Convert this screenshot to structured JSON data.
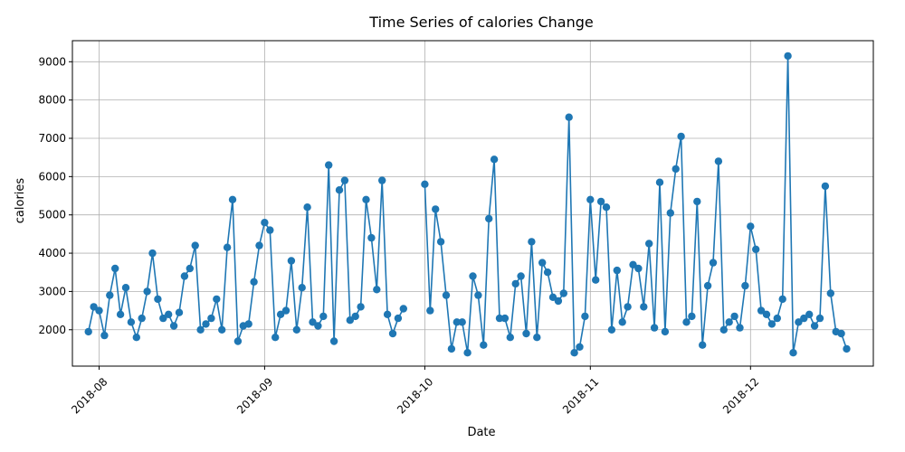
{
  "chart_data": {
    "type": "line",
    "title": "Time Series of calories Change",
    "xlabel": "Date",
    "ylabel": "calories",
    "grid": true,
    "legend": "none",
    "marker": "circle",
    "color": "#1f77b4",
    "xlim": [
      "2018-07-27",
      "2018-12-24"
    ],
    "ylim": [
      1050,
      9550
    ],
    "x_ticks": [
      {
        "date": "2018-08-01",
        "label": "2018-08"
      },
      {
        "date": "2018-09-01",
        "label": "2018-09"
      },
      {
        "date": "2018-10-01",
        "label": "2018-10"
      },
      {
        "date": "2018-11-01",
        "label": "2018-11"
      },
      {
        "date": "2018-12-01",
        "label": "2018-12"
      }
    ],
    "y_ticks": [
      2000,
      3000,
      4000,
      5000,
      6000,
      7000,
      8000,
      9000
    ],
    "series": [
      {
        "segments": [
          {
            "x": [
              "2018-07-30",
              "2018-07-31",
              "2018-08-01",
              "2018-08-02",
              "2018-08-03",
              "2018-08-04",
              "2018-08-05",
              "2018-08-06",
              "2018-08-07",
              "2018-08-08",
              "2018-08-09",
              "2018-08-10",
              "2018-08-11",
              "2018-08-12",
              "2018-08-13",
              "2018-08-14",
              "2018-08-15",
              "2018-08-16",
              "2018-08-17",
              "2018-08-18",
              "2018-08-19",
              "2018-08-20",
              "2018-08-21",
              "2018-08-22",
              "2018-08-23",
              "2018-08-24",
              "2018-08-25",
              "2018-08-26",
              "2018-08-27",
              "2018-08-28",
              "2018-08-29",
              "2018-08-30",
              "2018-08-31",
              "2018-09-01",
              "2018-09-02",
              "2018-09-03",
              "2018-09-04",
              "2018-09-05",
              "2018-09-06",
              "2018-09-07",
              "2018-09-08",
              "2018-09-09",
              "2018-09-10",
              "2018-09-11",
              "2018-09-12",
              "2018-09-13",
              "2018-09-14",
              "2018-09-15",
              "2018-09-16",
              "2018-09-17",
              "2018-09-18",
              "2018-09-19",
              "2018-09-20",
              "2018-09-21",
              "2018-09-22",
              "2018-09-23",
              "2018-09-24",
              "2018-09-25",
              "2018-09-26",
              "2018-09-27",
              "2018-09-28"
            ],
            "y": [
              1950,
              2600,
              2500,
              1850,
              2900,
              3600,
              2400,
              3100,
              2200,
              1800,
              2300,
              3000,
              4000,
              2800,
              2300,
              2400,
              2100,
              2450,
              3400,
              3600,
              4200,
              2000,
              2150,
              2300,
              2800,
              2000,
              4150,
              5400,
              1700,
              2100,
              2150,
              3250,
              4200,
              4800,
              4600,
              1800,
              2400,
              2500,
              3800,
              2000,
              3100,
              5200,
              2200,
              2100,
              2350,
              6300,
              1700,
              5650,
              5900,
              2250,
              2350,
              2600,
              5400,
              4400,
              3050,
              5900,
              2400,
              1900,
              2300,
              2550,
              null
            ]
          },
          {
            "x": [
              "2018-10-01",
              "2018-10-02",
              "2018-10-03",
              "2018-10-04",
              "2018-10-05",
              "2018-10-06",
              "2018-10-07",
              "2018-10-08",
              "2018-10-09",
              "2018-10-10",
              "2018-10-11",
              "2018-10-12",
              "2018-10-13",
              "2018-10-14",
              "2018-10-15",
              "2018-10-16",
              "2018-10-17",
              "2018-10-18",
              "2018-10-19",
              "2018-10-20",
              "2018-10-21",
              "2018-10-22",
              "2018-10-23",
              "2018-10-24",
              "2018-10-25",
              "2018-10-26",
              "2018-10-27",
              "2018-10-28",
              "2018-10-29",
              "2018-10-30",
              "2018-10-31",
              "2018-11-01",
              "2018-11-02",
              "2018-11-03",
              "2018-11-04",
              "2018-11-05",
              "2018-11-06",
              "2018-11-07",
              "2018-11-08",
              "2018-11-09",
              "2018-11-10",
              "2018-11-11",
              "2018-11-12",
              "2018-11-13",
              "2018-11-14",
              "2018-11-15",
              "2018-11-16",
              "2018-11-17",
              "2018-11-18",
              "2018-11-19",
              "2018-11-20",
              "2018-11-21",
              "2018-11-22",
              "2018-11-23",
              "2018-11-24",
              "2018-11-25",
              "2018-11-26",
              "2018-11-27",
              "2018-11-28",
              "2018-11-29",
              "2018-11-30",
              "2018-12-01",
              "2018-12-02",
              "2018-12-03",
              "2018-12-04",
              "2018-12-05",
              "2018-12-06",
              "2018-12-07",
              "2018-12-08",
              "2018-12-09",
              "2018-12-10",
              "2018-12-11",
              "2018-12-12",
              "2018-12-13",
              "2018-12-14",
              "2018-12-15",
              "2018-12-16",
              "2018-12-17",
              "2018-12-18",
              "2018-12-19",
              "2018-12-20"
            ],
            "y": [
              5800,
              2500,
              5150,
              4300,
              2900,
              1500,
              2200,
              2200,
              1400,
              3400,
              2900,
              1600,
              4900,
              6450,
              2300,
              2300,
              1800,
              3200,
              3400,
              1900,
              4300,
              1800,
              3750,
              3500,
              2850,
              2750,
              2950,
              7550,
              1400,
              1550,
              2350,
              5400,
              3300,
              5350,
              5200,
              2000,
              3550,
              2200,
              2600,
              3700,
              3600,
              2600,
              4250,
              2050,
              5850,
              1950,
              5050,
              6200,
              7050,
              2200,
              2350,
              5350,
              1600,
              3150,
              3750,
              6400,
              2000,
              2200,
              2350,
              2050,
              3150,
              4700,
              4100,
              2500,
              2400,
              2150,
              2300,
              2800,
              9150,
              1400,
              2200,
              2300,
              2400,
              2100,
              2300,
              5750,
              2950,
              1950,
              1900,
              1500,
              null
            ]
          }
        ]
      }
    ]
  }
}
